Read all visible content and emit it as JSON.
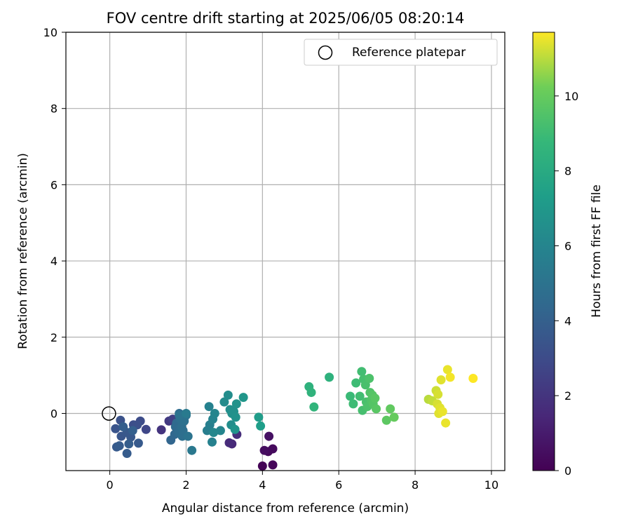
{
  "chart_data": {
    "type": "scatter",
    "title": "FOV centre drift starting at 2025/06/05 08:20:14",
    "xlabel": "Angular distance from reference (arcmin)",
    "ylabel": "Rotation from reference (arcmin)",
    "xlim": [
      -1.15,
      10.35
    ],
    "ylim": [
      -1.5,
      10
    ],
    "xticks": [
      "0",
      "2",
      "4",
      "6",
      "8",
      "10"
    ],
    "yticks": [
      "0",
      "2",
      "4",
      "6",
      "8",
      "10"
    ],
    "grid": true,
    "legend": {
      "placement": "top-right",
      "entries": [
        "Reference platepar"
      ]
    },
    "reference_point": {
      "x": 0,
      "y": 0
    },
    "colorbar": {
      "label": "Hours from first FF file",
      "min": 0,
      "max": 11.7,
      "ticks": [
        "0",
        "2",
        "4",
        "6",
        "8",
        "10"
      ],
      "colormap": "viridis"
    },
    "points": [
      {
        "x": 4.0,
        "y": -1.38,
        "h": 0.1
      },
      {
        "x": 4.27,
        "y": -1.35,
        "h": 0.2
      },
      {
        "x": 4.15,
        "y": -1.0,
        "h": 0.3
      },
      {
        "x": 4.27,
        "y": -0.93,
        "h": 0.35
      },
      {
        "x": 4.05,
        "y": -0.97,
        "h": 0.45
      },
      {
        "x": 4.17,
        "y": -0.6,
        "h": 0.6
      },
      {
        "x": 3.2,
        "y": -0.8,
        "h": 1.5
      },
      {
        "x": 3.13,
        "y": -0.77,
        "h": 1.6
      },
      {
        "x": 3.33,
        "y": -0.55,
        "h": 1.7
      },
      {
        "x": 1.35,
        "y": -0.43,
        "h": 2.0
      },
      {
        "x": 1.55,
        "y": -0.2,
        "h": 2.2
      },
      {
        "x": 1.65,
        "y": -0.15,
        "h": 2.5
      },
      {
        "x": 0.95,
        "y": -0.42,
        "h": 2.8
      },
      {
        "x": 0.8,
        "y": -0.2,
        "h": 3.0
      },
      {
        "x": 0.62,
        "y": -0.3,
        "h": 3.1
      },
      {
        "x": 0.72,
        "y": -0.3,
        "h": 3.2
      },
      {
        "x": 0.28,
        "y": -0.18,
        "h": 3.3
      },
      {
        "x": 0.15,
        "y": -0.4,
        "h": 3.4
      },
      {
        "x": 0.3,
        "y": -0.6,
        "h": 3.5
      },
      {
        "x": 0.45,
        "y": -0.5,
        "h": 3.6
      },
      {
        "x": 0.55,
        "y": -0.62,
        "h": 3.6
      },
      {
        "x": 0.75,
        "y": -0.78,
        "h": 3.7
      },
      {
        "x": 0.18,
        "y": -0.88,
        "h": 3.7
      },
      {
        "x": 0.25,
        "y": -0.85,
        "h": 3.8
      },
      {
        "x": 0.45,
        "y": -1.05,
        "h": 3.8
      },
      {
        "x": 0.5,
        "y": -0.8,
        "h": 3.9
      },
      {
        "x": 0.35,
        "y": -0.35,
        "h": 3.9
      },
      {
        "x": 0.6,
        "y": -0.45,
        "h": 4.0
      },
      {
        "x": 1.6,
        "y": -0.7,
        "h": 4.3
      },
      {
        "x": 1.7,
        "y": -0.55,
        "h": 4.4
      },
      {
        "x": 1.72,
        "y": -0.35,
        "h": 4.5
      },
      {
        "x": 1.75,
        "y": -0.25,
        "h": 4.5
      },
      {
        "x": 1.8,
        "y": -0.5,
        "h": 4.6
      },
      {
        "x": 1.82,
        "y": 0.0,
        "h": 4.6
      },
      {
        "x": 1.85,
        "y": -0.15,
        "h": 4.7
      },
      {
        "x": 1.88,
        "y": -0.35,
        "h": 4.7
      },
      {
        "x": 1.9,
        "y": -0.6,
        "h": 4.8
      },
      {
        "x": 1.92,
        "y": -0.45,
        "h": 4.8
      },
      {
        "x": 1.95,
        "y": -0.2,
        "h": 4.9
      },
      {
        "x": 2.0,
        "y": -0.05,
        "h": 4.9
      },
      {
        "x": 2.05,
        "y": -0.6,
        "h": 5.0
      },
      {
        "x": 1.82,
        "y": -0.05,
        "h": 5.0
      },
      {
        "x": 2.15,
        "y": -0.97,
        "h": 5.3
      },
      {
        "x": 2.0,
        "y": 0.0,
        "h": 5.4
      },
      {
        "x": 2.55,
        "y": -0.45,
        "h": 5.6
      },
      {
        "x": 2.62,
        "y": -0.3,
        "h": 5.7
      },
      {
        "x": 2.6,
        "y": 0.18,
        "h": 5.8
      },
      {
        "x": 2.68,
        "y": -0.75,
        "h": 5.8
      },
      {
        "x": 2.7,
        "y": -0.15,
        "h": 5.9
      },
      {
        "x": 2.75,
        "y": 0.0,
        "h": 6.0
      },
      {
        "x": 2.9,
        "y": -0.45,
        "h": 6.0
      },
      {
        "x": 2.72,
        "y": -0.5,
        "h": 6.1
      },
      {
        "x": 3.0,
        "y": 0.3,
        "h": 6.3
      },
      {
        "x": 3.1,
        "y": 0.48,
        "h": 6.4
      },
      {
        "x": 3.15,
        "y": 0.1,
        "h": 6.5
      },
      {
        "x": 3.18,
        "y": -0.3,
        "h": 6.5
      },
      {
        "x": 3.2,
        "y": 0.0,
        "h": 6.6
      },
      {
        "x": 3.25,
        "y": 0.05,
        "h": 6.6
      },
      {
        "x": 3.3,
        "y": -0.1,
        "h": 6.7
      },
      {
        "x": 3.32,
        "y": 0.25,
        "h": 6.7
      },
      {
        "x": 3.28,
        "y": -0.42,
        "h": 6.8
      },
      {
        "x": 3.5,
        "y": 0.42,
        "h": 6.9
      },
      {
        "x": 3.9,
        "y": -0.1,
        "h": 7.2
      },
      {
        "x": 3.95,
        "y": -0.33,
        "h": 7.3
      },
      {
        "x": 5.22,
        "y": 0.7,
        "h": 8.4
      },
      {
        "x": 5.28,
        "y": 0.55,
        "h": 8.5
      },
      {
        "x": 5.35,
        "y": 0.17,
        "h": 8.6
      },
      {
        "x": 5.75,
        "y": 0.95,
        "h": 8.4
      },
      {
        "x": 6.3,
        "y": 0.45,
        "h": 8.9
      },
      {
        "x": 6.38,
        "y": 0.25,
        "h": 9.0
      },
      {
        "x": 6.45,
        "y": 0.8,
        "h": 9.0
      },
      {
        "x": 6.55,
        "y": 0.45,
        "h": 9.1
      },
      {
        "x": 6.6,
        "y": 1.1,
        "h": 9.1
      },
      {
        "x": 6.62,
        "y": 0.08,
        "h": 9.2
      },
      {
        "x": 6.65,
        "y": 0.9,
        "h": 9.2
      },
      {
        "x": 6.7,
        "y": 0.75,
        "h": 9.3
      },
      {
        "x": 6.72,
        "y": 0.3,
        "h": 9.3
      },
      {
        "x": 6.75,
        "y": 0.18,
        "h": 9.4
      },
      {
        "x": 6.8,
        "y": 0.92,
        "h": 9.4
      },
      {
        "x": 6.82,
        "y": 0.55,
        "h": 9.5
      },
      {
        "x": 6.85,
        "y": 0.35,
        "h": 9.5
      },
      {
        "x": 6.88,
        "y": 0.48,
        "h": 9.6
      },
      {
        "x": 6.9,
        "y": 0.25,
        "h": 9.6
      },
      {
        "x": 6.95,
        "y": 0.4,
        "h": 9.7
      },
      {
        "x": 6.98,
        "y": 0.12,
        "h": 9.7
      },
      {
        "x": 7.25,
        "y": -0.18,
        "h": 9.8
      },
      {
        "x": 7.35,
        "y": 0.12,
        "h": 9.9
      },
      {
        "x": 7.45,
        "y": -0.1,
        "h": 10.0
      },
      {
        "x": 8.35,
        "y": 0.37,
        "h": 11.0
      },
      {
        "x": 8.45,
        "y": 0.33,
        "h": 11.1
      },
      {
        "x": 8.55,
        "y": 0.6,
        "h": 11.2
      },
      {
        "x": 8.58,
        "y": 0.25,
        "h": 11.3
      },
      {
        "x": 8.6,
        "y": 0.5,
        "h": 11.3
      },
      {
        "x": 8.65,
        "y": 0.15,
        "h": 11.4
      },
      {
        "x": 8.62,
        "y": 0.0,
        "h": 11.4
      },
      {
        "x": 8.68,
        "y": 0.88,
        "h": 11.4
      },
      {
        "x": 8.72,
        "y": 0.05,
        "h": 11.5
      },
      {
        "x": 8.8,
        "y": -0.25,
        "h": 11.5
      },
      {
        "x": 8.85,
        "y": 1.15,
        "h": 11.5
      },
      {
        "x": 8.92,
        "y": 0.95,
        "h": 11.6
      },
      {
        "x": 9.52,
        "y": 0.92,
        "h": 11.7
      }
    ]
  }
}
